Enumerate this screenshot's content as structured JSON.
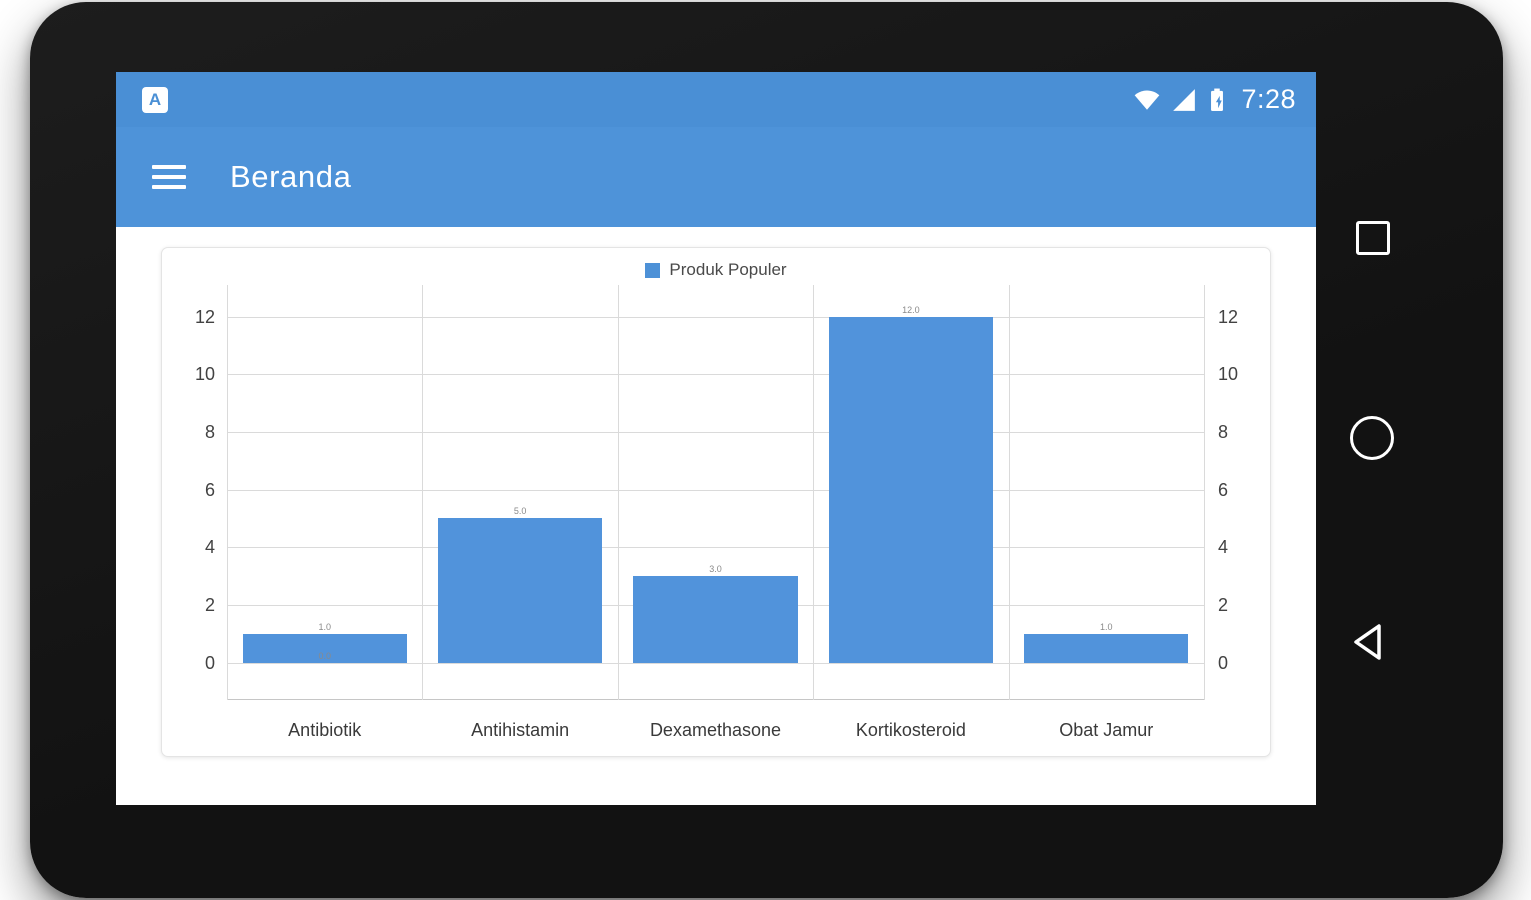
{
  "status_bar": {
    "app_badge": "A",
    "time": "7:28",
    "icons": [
      "wifi-icon",
      "cell-signal-icon",
      "battery-charging-icon"
    ]
  },
  "app_bar": {
    "title": "Beranda",
    "menu_icon": "hamburger-menu-icon"
  },
  "navigation": {
    "buttons": [
      {
        "id": "recents",
        "shape": "square-outline"
      },
      {
        "id": "home",
        "shape": "circle-outline"
      },
      {
        "id": "back",
        "shape": "triangle-left-outline"
      }
    ]
  },
  "chart_data": {
    "type": "bar",
    "title": "",
    "legend": {
      "label": "Produk Populer",
      "position": "top-center",
      "color": "#4D91D7"
    },
    "categories": [
      "Antibiotik",
      "Antihistamin",
      "Dexamethasone",
      "Kortikosteroid",
      "Obat Jamur"
    ],
    "series": [
      {
        "name": "Produk Populer",
        "values": [
          1.0,
          5.0,
          3.0,
          12.0,
          1.0
        ],
        "color": "#5193DB"
      }
    ],
    "value_labels": [
      "1.0",
      "5.0",
      "3.0",
      "12.0",
      "1.0"
    ],
    "baseline_label": {
      "category_index": 0,
      "text": "0.0"
    },
    "y_axis": {
      "ticks": [
        0,
        2,
        4,
        6,
        8,
        10,
        12
      ],
      "min": -1.3,
      "max": 13.1,
      "dual": true
    },
    "xlabel": "",
    "ylabel": "",
    "grid": true
  },
  "colors": {
    "status_bar_blue": "#4A8FD5",
    "app_bar_blue": "#4E93D9",
    "bar_blue": "#5193DB",
    "grid_line": "#dadada",
    "frame_black": "#171717"
  }
}
